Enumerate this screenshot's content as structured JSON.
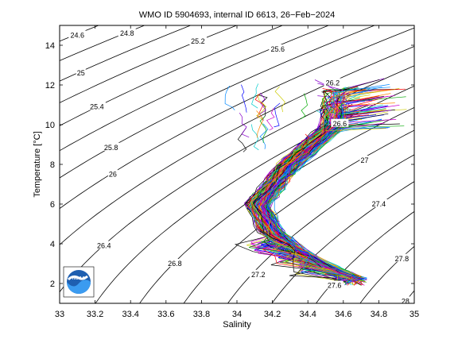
{
  "chart_data": {
    "type": "line",
    "title": "WMO ID 5904693, internal ID 6613, 26−Feb−2024",
    "xlabel": "Salinity",
    "ylabel": "Temperature [°C]",
    "xlim": [
      33,
      35
    ],
    "ylim": [
      1,
      15
    ],
    "xticks": [
      "33",
      "33.2",
      "33.4",
      "33.6",
      "33.8",
      "34",
      "34.2",
      "34.4",
      "34.6",
      "34.8",
      "35"
    ],
    "yticks": [
      "2",
      "4",
      "6",
      "8",
      "10",
      "12",
      "14"
    ],
    "grid": false,
    "density_contours": [
      {
        "label": "24.6",
        "x": 33.1,
        "y": 14.5
      },
      {
        "label": "24.8",
        "x": 33.38,
        "y": 14.6
      },
      {
        "label": "25",
        "x": 33.12,
        "y": 12.6
      },
      {
        "label": "25.2",
        "x": 33.78,
        "y": 14.2
      },
      {
        "label": "25.4",
        "x": 33.21,
        "y": 10.9
      },
      {
        "label": "25.6",
        "x": 34.23,
        "y": 13.8
      },
      {
        "label": "25.8",
        "x": 33.29,
        "y": 8.85
      },
      {
        "label": "26",
        "x": 33.3,
        "y": 7.5
      },
      {
        "label": "26.2",
        "x": 34.54,
        "y": 12.1
      },
      {
        "label": "26.4",
        "x": 33.25,
        "y": 3.9
      },
      {
        "label": "26.6",
        "x": 34.58,
        "y": 10.05
      },
      {
        "label": "26.8",
        "x": 33.65,
        "y": 3.0
      },
      {
        "label": "27",
        "x": 34.72,
        "y": 8.2
      },
      {
        "label": "27.2",
        "x": 34.12,
        "y": 2.45
      },
      {
        "label": "27.4",
        "x": 34.8,
        "y": 6.0
      },
      {
        "label": "27.6",
        "x": 34.55,
        "y": 1.9
      },
      {
        "label": "27.8",
        "x": 34.93,
        "y": 3.25
      },
      {
        "label": "28",
        "x": 34.95,
        "y": 1.1
      }
    ],
    "profile_envelope": {
      "surface": {
        "salinity": [
          34.5,
          34.95
        ],
        "temperature": [
          10,
          12
        ]
      },
      "thermocline_center": [
        {
          "salinity": 34.55,
          "temperature": 10.0
        },
        {
          "salinity": 34.3,
          "temperature": 8.0
        },
        {
          "salinity": 34.12,
          "temperature": 6.0
        },
        {
          "salinity": 34.2,
          "temperature": 4.5
        },
        {
          "salinity": 34.45,
          "temperature": 3.0
        },
        {
          "salinity": 34.73,
          "temperature": 2.0
        }
      ],
      "subsurface_minimum": {
        "salinity": [
          34.0,
          34.2
        ],
        "temperature": [
          2.3,
          3.5
        ]
      }
    },
    "profile_colors": [
      "#0000ff",
      "#00aa00",
      "#ff0000",
      "#00cccc",
      "#cc00cc",
      "#cccc00",
      "#000000",
      "#ff8800",
      "#8800cc",
      "#0088ff"
    ],
    "logo": {
      "text": "NOAA"
    }
  }
}
